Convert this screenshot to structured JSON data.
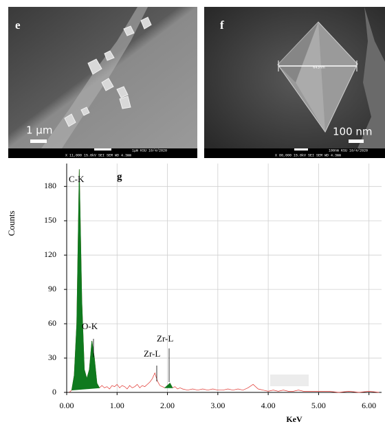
{
  "panels": [
    {
      "label": "e",
      "scale": "1 μm",
      "info_top": "1μm   KSU    10/4/2020",
      "info_bottom": "X 11,000   15.0kV SEI     SEM    WD 4.3mm"
    },
    {
      "label": "f",
      "scale": "100 nm",
      "measure": "643nm",
      "info_top": "100nm KSU    10/4/2020",
      "info_bottom": "X 80,000   15.0kV SEI     SEM    WD 4.3mm"
    }
  ],
  "chart_data": {
    "type": "line",
    "title": "g",
    "x_label": "KeV",
    "y_label": "Counts",
    "x": [
      0.05,
      0.1,
      0.15,
      0.2,
      0.25,
      0.3,
      0.35,
      0.4,
      0.45,
      0.5,
      0.55,
      0.6,
      0.65,
      0.7,
      0.75,
      0.8,
      0.85,
      0.9,
      0.95,
      1.0,
      1.05,
      1.1,
      1.15,
      1.2,
      1.25,
      1.3,
      1.35,
      1.4,
      1.45,
      1.5,
      1.55,
      1.6,
      1.65,
      1.7,
      1.75,
      1.8,
      1.85,
      1.9,
      1.95,
      2.0,
      2.05,
      2.1,
      2.15,
      2.2,
      2.25,
      2.3,
      2.4,
      2.5,
      2.6,
      2.7,
      2.8,
      2.9,
      3.0,
      3.1,
      3.2,
      3.3,
      3.4,
      3.5,
      3.6,
      3.7,
      3.8,
      3.9,
      4.0,
      4.1,
      4.2,
      4.3,
      4.4,
      4.5,
      4.6,
      4.7,
      4.8,
      4.9,
      5.0,
      5.2,
      5.4,
      5.6,
      5.8,
      6.0,
      6.2
    ],
    "series": [
      {
        "color": "#e0322c",
        "values": [
          0,
          2,
          15,
          60,
          195,
          80,
          20,
          12,
          20,
          45,
          30,
          8,
          4,
          6,
          4,
          5,
          3,
          6,
          5,
          7,
          4,
          6,
          5,
          3,
          6,
          4,
          5,
          7,
          4,
          6,
          5,
          7,
          9,
          12,
          17,
          10,
          6,
          5,
          4,
          6,
          8,
          4,
          5,
          3,
          4,
          3,
          2,
          3,
          2,
          3,
          2,
          3,
          2,
          2,
          3,
          2,
          3,
          2,
          4,
          7,
          3,
          2,
          1,
          2,
          1,
          2,
          1,
          1,
          2,
          1,
          1,
          1,
          1,
          1,
          0,
          1,
          0,
          1,
          0
        ]
      },
      {
        "color": "#0f7a1e",
        "fill": true,
        "values": [
          null,
          2,
          15,
          60,
          195,
          80,
          20,
          12,
          20,
          45,
          30,
          8,
          4,
          null,
          null,
          null,
          null,
          null,
          null,
          null,
          null,
          null,
          null,
          null,
          null,
          null,
          null,
          null,
          null,
          null,
          null,
          null,
          null,
          null,
          null,
          null,
          null,
          null,
          4,
          6,
          8,
          4,
          null,
          null,
          null,
          null,
          null,
          null,
          null,
          null,
          null,
          null,
          null,
          null,
          null,
          null,
          null,
          null,
          null,
          null,
          null,
          null,
          null,
          null,
          null,
          null,
          null,
          null,
          null,
          null,
          null,
          null,
          null,
          null,
          null,
          null,
          null,
          null,
          null
        ]
      }
    ],
    "annotations": [
      "C-K",
      "O-K",
      "Zr-L",
      "Zr-L"
    ],
    "xlim": [
      0,
      6.25
    ],
    "xticks": [
      {
        "value": 0,
        "label": "0.00"
      },
      {
        "value": 1,
        "label": "1.00"
      },
      {
        "value": 2,
        "label": "2.00"
      },
      {
        "value": 3,
        "label": "3.00"
      },
      {
        "value": 4,
        "label": "4.00"
      },
      {
        "value": 5,
        "label": "5.00"
      },
      {
        "value": 6,
        "label": "6.00"
      }
    ],
    "ylim": [
      0,
      200
    ],
    "yticks": [
      0,
      30,
      60,
      90,
      120,
      150,
      180
    ],
    "grid": true
  }
}
